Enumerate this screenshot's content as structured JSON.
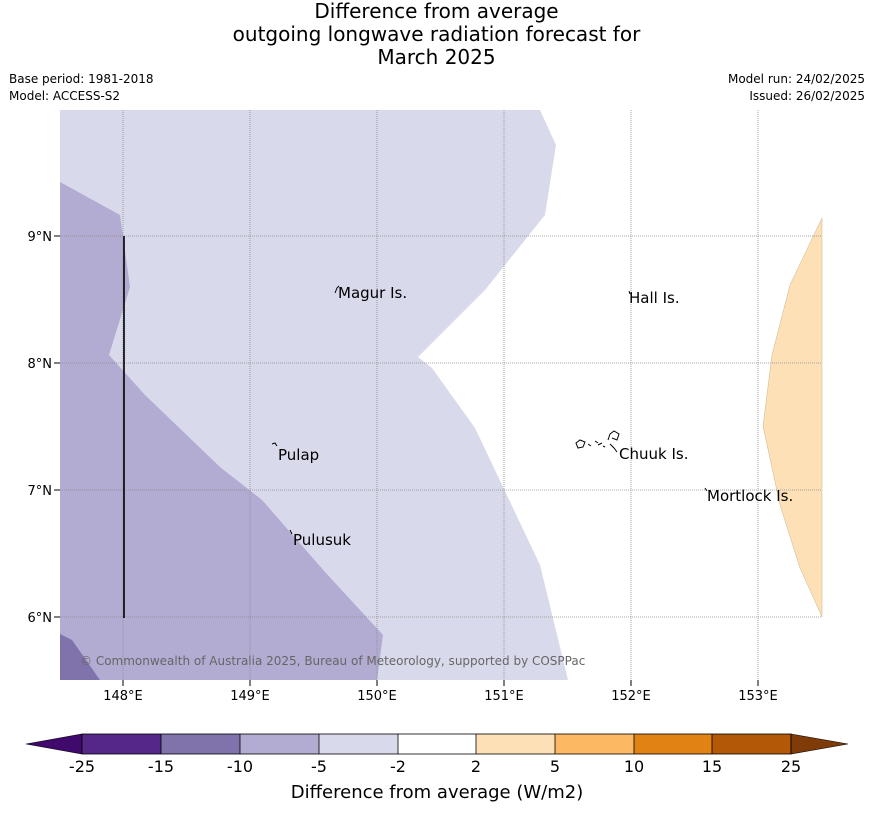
{
  "title": {
    "line1": "Difference from average",
    "line2": "outgoing longwave radiation forecast for",
    "line3": "March 2025"
  },
  "meta": {
    "base_period": "Base period: 1981-2018",
    "model": "Model: ACCESS-S2",
    "model_run": "Model run: 24/02/2025",
    "issued": "Issued: 26/02/2025"
  },
  "map": {
    "lat_labels": [
      "9°N",
      "8°N",
      "7°N",
      "6°N"
    ],
    "lon_labels": [
      "148°E",
      "149°E",
      "150°E",
      "151°E",
      "152°E",
      "153°E"
    ],
    "places": [
      "Magur Is.",
      "Hall Is.",
      "Pulap",
      "Chuuk Is.",
      "Mortlock Is.",
      "Pulusuk"
    ],
    "copyright": "© Commonwealth of Australia 2025, Bureau of Meteorology, supported by COSPPac"
  },
  "colorbar": {
    "ticks": [
      "-25",
      "-15",
      "-10",
      "-5",
      "-2",
      "2",
      "5",
      "10",
      "15",
      "25"
    ],
    "label": "Difference from average (W/m2)",
    "colors": [
      "#3f0a6b",
      "#542788",
      "#8073ac",
      "#b2abd2",
      "#d8daeb",
      "#ffffff",
      "#fee0b6",
      "#fdb863",
      "#e08214",
      "#b35806",
      "#7f3b08"
    ]
  }
}
